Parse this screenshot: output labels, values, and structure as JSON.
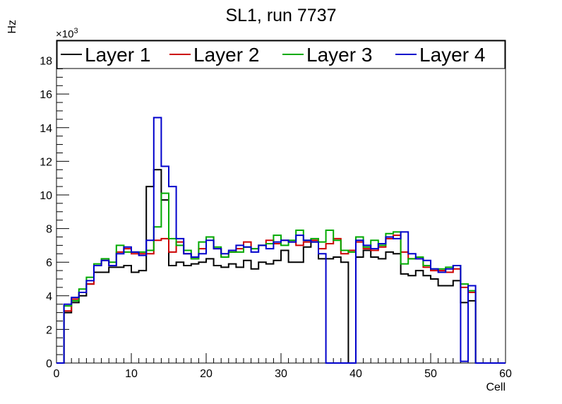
{
  "chart_data": {
    "type": "line",
    "title": "SL1, run 7737",
    "xlabel": "Cell",
    "ylabel": "Hz",
    "y_multiplier_label": "×10",
    "y_multiplier_exp": "3",
    "xlim": [
      0,
      60
    ],
    "ylim": [
      0,
      19.2
    ],
    "x_ticks": [
      0,
      10,
      20,
      30,
      40,
      50,
      60
    ],
    "x_tick_labels": [
      "0",
      "10",
      "20",
      "30",
      "40",
      "50",
      "60"
    ],
    "y_ticks": [
      0,
      2,
      4,
      6,
      8,
      10,
      12,
      14,
      16,
      18
    ],
    "y_tick_labels": [
      "0",
      "2",
      "4",
      "6",
      "8",
      "10",
      "12",
      "14",
      "16",
      "18"
    ],
    "bins_x": [
      0,
      1,
      2,
      3,
      4,
      5,
      6,
      7,
      8,
      9,
      10,
      11,
      12,
      13,
      14,
      15,
      16,
      17,
      18,
      19,
      20,
      21,
      22,
      23,
      24,
      25,
      26,
      27,
      28,
      29,
      30,
      31,
      32,
      33,
      34,
      35,
      36,
      37,
      38,
      39,
      40,
      41,
      42,
      43,
      44,
      45,
      46,
      47,
      48,
      49,
      50,
      51,
      52,
      53,
      54,
      55,
      56,
      57,
      58,
      59
    ],
    "bin_width": 1,
    "legend_position": "top",
    "series": [
      {
        "name": "Layer 1",
        "color": "#000000",
        "values": [
          0,
          3.0,
          3.6,
          4.0,
          4.7,
          5.4,
          5.4,
          5.7,
          5.7,
          5.8,
          5.4,
          5.5,
          10.5,
          11.5,
          9.7,
          5.8,
          6.0,
          5.8,
          5.9,
          6.0,
          6.2,
          5.8,
          5.7,
          5.9,
          5.7,
          6.1,
          5.6,
          6.0,
          5.9,
          6.1,
          6.7,
          6.0,
          6.0,
          6.9,
          7.2,
          6.2,
          6.2,
          6.3,
          6.0,
          0,
          6.3,
          6.7,
          6.3,
          6.2,
          6.6,
          6.5,
          5.3,
          5.2,
          5.5,
          5.2,
          5.0,
          4.6,
          4.6,
          4.9,
          3.6,
          3.7,
          0,
          0,
          0,
          0
        ]
      },
      {
        "name": "Layer 2",
        "color": "#cc0000",
        "values": [
          0,
          3.1,
          3.8,
          4.2,
          4.7,
          5.8,
          6.1,
          5.8,
          6.6,
          6.8,
          6.5,
          6.5,
          6.5,
          7.3,
          7.4,
          6.6,
          7.2,
          6.5,
          6.2,
          6.8,
          7.5,
          6.8,
          6.3,
          6.6,
          6.8,
          7.2,
          6.8,
          7.0,
          7.3,
          7.1,
          7.3,
          7.2,
          7.0,
          7.2,
          7.3,
          6.8,
          7.1,
          7.4,
          6.5,
          6.7,
          7.2,
          6.8,
          6.7,
          6.9,
          7.4,
          7.6,
          6.6,
          6.2,
          6.2,
          5.7,
          5.5,
          5.5,
          5.4,
          5.6,
          4.5,
          4.2,
          0,
          0,
          0,
          0
        ]
      },
      {
        "name": "Layer 3",
        "color": "#00aa00",
        "values": [
          0,
          3.4,
          3.7,
          4.4,
          5.1,
          5.9,
          6.2,
          6.0,
          7.0,
          6.6,
          6.6,
          6.6,
          6.7,
          8.1,
          10.1,
          7.4,
          7.0,
          6.7,
          6.2,
          7.2,
          7.5,
          6.9,
          6.3,
          6.6,
          6.6,
          6.9,
          6.8,
          7.0,
          7.1,
          7.6,
          7.0,
          7.3,
          7.9,
          7.3,
          7.4,
          7.2,
          7.9,
          7.3,
          6.7,
          6.6,
          7.5,
          6.9,
          7.3,
          7.0,
          7.7,
          7.8,
          5.9,
          6.2,
          6.3,
          5.8,
          5.6,
          5.6,
          5.7,
          5.8,
          4.7,
          4.3,
          0,
          0,
          0,
          0
        ]
      },
      {
        "name": "Layer 4",
        "color": "#0000cc",
        "values": [
          0,
          3.5,
          3.9,
          4.2,
          4.9,
          5.8,
          6.1,
          5.8,
          6.5,
          6.9,
          6.6,
          6.4,
          7.3,
          14.6,
          11.7,
          10.5,
          7.4,
          6.5,
          6.3,
          6.5,
          7.3,
          6.8,
          6.5,
          6.7,
          7.0,
          6.9,
          6.6,
          7.0,
          6.8,
          7.2,
          7.3,
          7.2,
          7.6,
          7.3,
          7.2,
          6.5,
          0,
          0,
          0,
          0,
          7.3,
          7.0,
          6.8,
          7.1,
          7.5,
          7.4,
          7.8,
          6.5,
          6.2,
          6.1,
          5.6,
          5.4,
          5.6,
          5.8,
          0.1,
          4.6,
          0,
          0,
          0,
          0
        ]
      }
    ]
  }
}
